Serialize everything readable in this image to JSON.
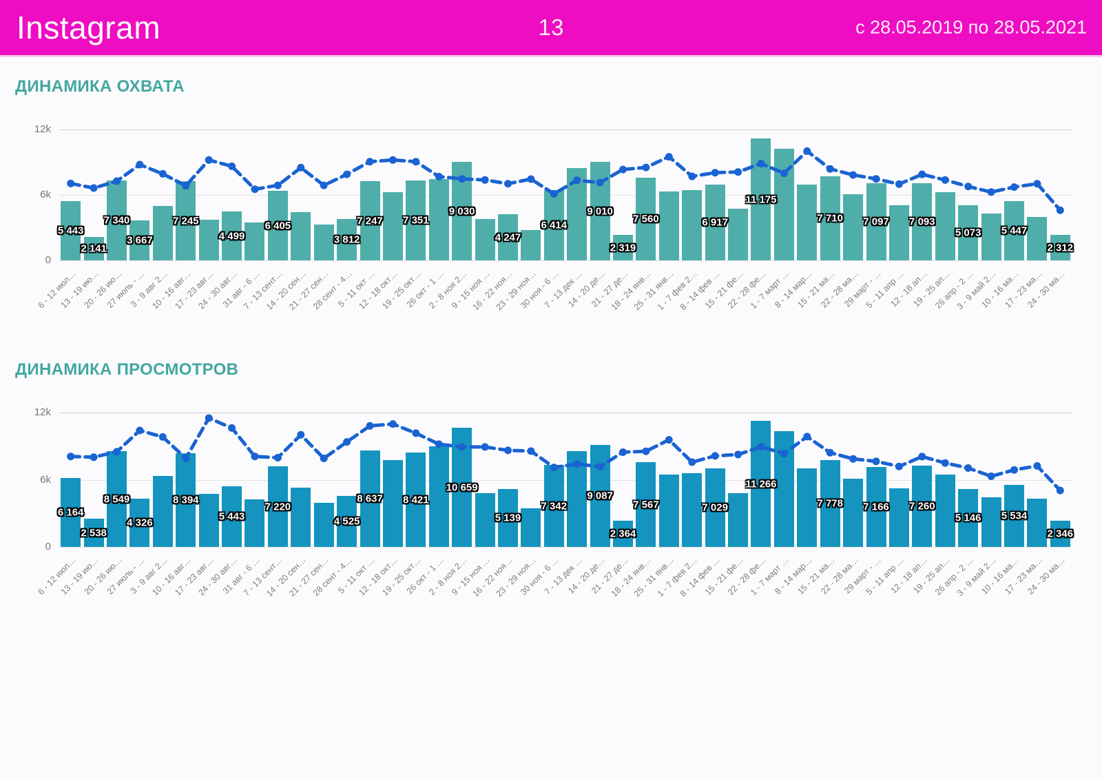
{
  "header": {
    "app": "Instagram",
    "page": "13",
    "period": "с 28.05.2019 по 28.05.2021",
    "bg_color": "#EE0DC2"
  },
  "chart_data": [
    {
      "type": "bar",
      "title": "ДИНАМИКА ОХВАТА",
      "bar_color": "#4FAEA9",
      "line_color": "#1A63D2",
      "ylim": [
        0,
        12000
      ],
      "yticks": [
        "12k",
        "6k",
        "0"
      ],
      "grid": "horizontal",
      "legend": "none",
      "categories": [
        "6 - 12 июл…",
        "13 - 19 ию…",
        "20 - 26 ию…",
        "27 июль - …",
        "3 - 9 авг 2…",
        "10 - 16 авг…",
        "17 - 23 авг…",
        "24 - 30 авг…",
        "31 авг - 6 …",
        "7 - 13 сент…",
        "14 - 20 сен…",
        "21 - 27 сен…",
        "28 сент - 4…",
        "5 - 11 окт …",
        "12 - 18 окт…",
        "19 - 25 окт…",
        "26 окт - 1 …",
        "2 - 8 ноя 2…",
        "9 - 15 ноя …",
        "16 - 22 ноя…",
        "23 - 29 ноя…",
        "30 ноя - 6 …",
        "7 - 13 дек …",
        "14 - 20 де…",
        "21 - 27 де…",
        "18 - 24 янв…",
        "25 - 31 янв…",
        "1 - 7 фев 2…",
        "8 - 14 фев …",
        "15 - 21 фе…",
        "22 - 28 фе…",
        "1 - 7 март …",
        "8 - 14 мар…",
        "15 - 21 ма…",
        "22 - 28 ма…",
        "29 март - …",
        "5 - 11 апр …",
        "12 - 18 ап…",
        "19 - 25 ап…",
        "26 апр - 2 …",
        "3 - 9 май 2…",
        "10 - 16 ма…",
        "17 - 23 ма…",
        "24 - 30 ма…"
      ],
      "series": [
        {
          "name": "охват (bars)",
          "values": [
            5443,
            2141,
            7340,
            3667,
            5000,
            7245,
            3725,
            4499,
            3470,
            6405,
            4400,
            3300,
            3812,
            7247,
            6250,
            7351,
            7450,
            9030,
            3770,
            4247,
            2780,
            6414,
            8440,
            9010,
            2319,
            7560,
            6315,
            6460,
            6917,
            4735,
            11175,
            10200,
            6950,
            7710,
            6050,
            7097,
            5050,
            7093,
            6260,
            5073,
            4280,
            5447,
            4000,
            2312
          ]
        },
        {
          "name": "trend line (dashed)",
          "values": [
            7050,
            6630,
            7260,
            8780,
            7935,
            6840,
            9200,
            8630,
            6525,
            6880,
            8500,
            6880,
            7890,
            9050,
            9200,
            9050,
            7680,
            7470,
            7370,
            7030,
            7450,
            6100,
            7340,
            7140,
            8330,
            8520,
            9500,
            7700,
            8040,
            8100,
            8870,
            7980,
            10020,
            8390,
            7830,
            7470,
            6990,
            7890,
            7370,
            6780,
            6260,
            6720,
            7030,
            4600
          ]
        }
      ],
      "labeled_indices": [
        0,
        1,
        2,
        3,
        5,
        7,
        9,
        12,
        13,
        15,
        17,
        19,
        21,
        23,
        24,
        25,
        28,
        30,
        33,
        35,
        37,
        39,
        41,
        43
      ]
    },
    {
      "type": "bar",
      "title": "ДИНАМИКА ПРОСМОТРОВ",
      "bar_color": "#1494BF",
      "line_color": "#1A63D2",
      "ylim": [
        0,
        12000
      ],
      "yticks": [
        "12k",
        "6k",
        "0"
      ],
      "grid": "horizontal",
      "legend": "none",
      "categories": [
        "6 - 12 июл…",
        "13 - 19 ию…",
        "20 - 26 ию…",
        "27 июль - …",
        "3 - 9 авг 2…",
        "10 - 16 авг…",
        "17 - 23 авг…",
        "24 - 30 авг…",
        "31 авг - 6 …",
        "7 - 13 сент…",
        "14 - 20 сен…",
        "21 - 27 сен…",
        "28 сент - 4…",
        "5 - 11 окт …",
        "12 - 18 окт…",
        "19 - 25 окт…",
        "26 окт - 1 …",
        "2 - 8 ноя 2…",
        "9 - 15 ноя …",
        "16 - 22 ноя…",
        "23 - 29 ноя…",
        "30 ноя - 6 …",
        "7 - 13 дек …",
        "14 - 20 де…",
        "21 - 27 де…",
        "18 - 24 янв…",
        "25 - 31 янв…",
        "1 - 7 фев 2…",
        "8 - 14 фев …",
        "15 - 21 фе…",
        "22 - 28 фе…",
        "1 - 7 март …",
        "8 - 14 мар…",
        "15 - 21 ма…",
        "22 - 28 ма…",
        "29 март - …",
        "5 - 11 апр …",
        "12 - 18 ап…",
        "19 - 25 ап…",
        "26 апр - 2 …",
        "3 - 9 май 2…",
        "10 - 16 ма…",
        "17 - 23 ма…",
        "24 - 30 ма…"
      ],
      "series": [
        {
          "name": "просмотры (bars)",
          "values": [
            6164,
            2538,
            8549,
            4326,
            6340,
            8394,
            4730,
            5443,
            4220,
            7220,
            5280,
            3950,
            4525,
            8637,
            7740,
            8421,
            8990,
            10659,
            4830,
            5139,
            3440,
            7342,
            8540,
            9087,
            2364,
            7567,
            6440,
            6580,
            7029,
            4790,
            11266,
            10315,
            7000,
            7778,
            6100,
            7166,
            5240,
            7260,
            6470,
            5146,
            4420,
            5534,
            4320,
            2346
          ]
        },
        {
          "name": "trend line (dashed)",
          "values": [
            8080,
            8010,
            8500,
            10400,
            9820,
            7910,
            11510,
            10620,
            8080,
            7970,
            10015,
            7905,
            9380,
            10810,
            10980,
            10160,
            9175,
            8930,
            8930,
            8620,
            8560,
            7100,
            7405,
            7160,
            8460,
            8540,
            9570,
            7570,
            8130,
            8250,
            8950,
            8330,
            9850,
            8420,
            7865,
            7640,
            7190,
            8070,
            7495,
            7045,
            6310,
            6880,
            7230,
            5040
          ]
        }
      ],
      "labeled_indices": [
        0,
        1,
        2,
        3,
        5,
        7,
        9,
        12,
        13,
        15,
        17,
        19,
        21,
        23,
        24,
        25,
        28,
        30,
        33,
        35,
        37,
        39,
        41,
        43
      ]
    }
  ]
}
